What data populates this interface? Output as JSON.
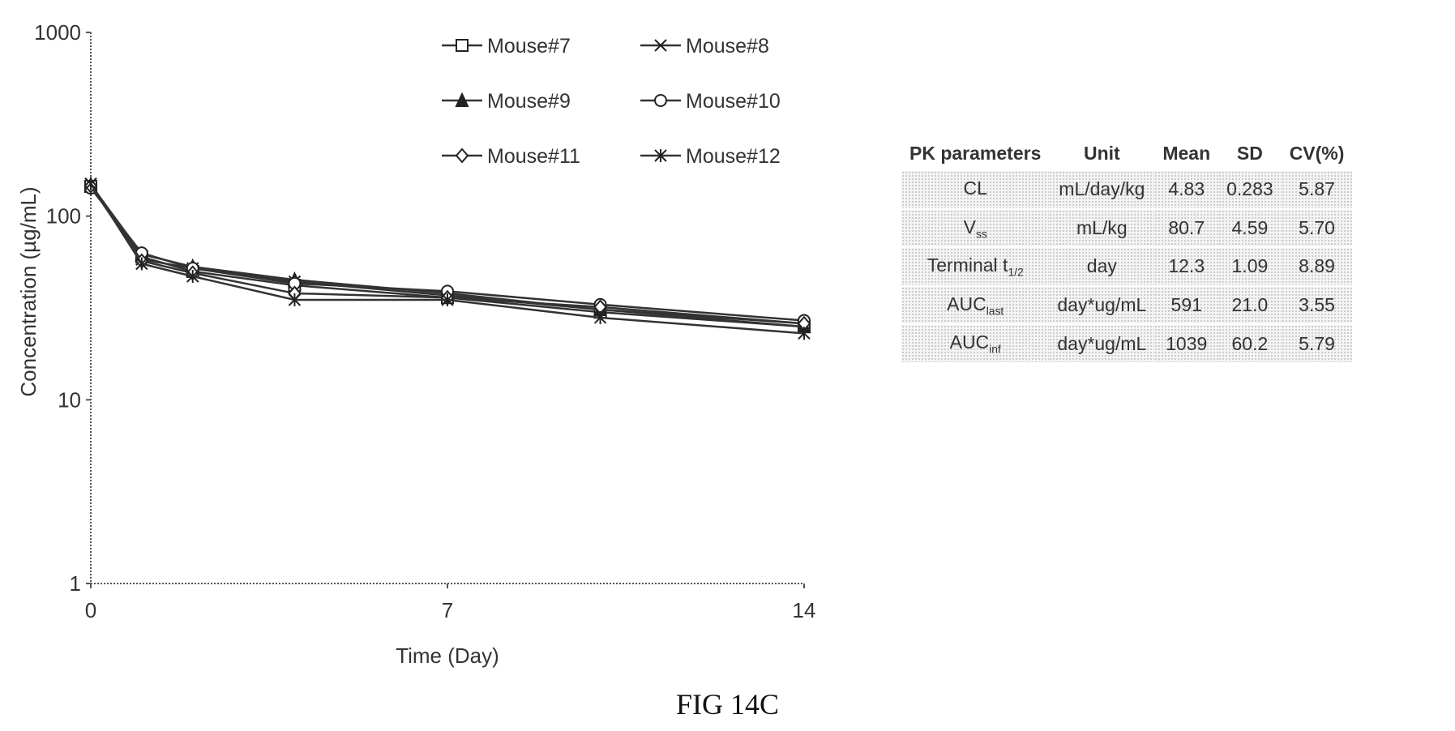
{
  "chart_data": {
    "type": "line",
    "y_scale": "log",
    "ylim": [
      1,
      1000
    ],
    "xlim": [
      0,
      14
    ],
    "xticks": [
      0,
      7,
      14
    ],
    "yticks": [
      1,
      10,
      100,
      1000
    ],
    "xlabel": "Time (Day)",
    "ylabel": "Concentration (µg/mL)",
    "legend_position": "top",
    "x": [
      0,
      1,
      2,
      4,
      7,
      10,
      14
    ],
    "series": [
      {
        "name": "Mouse#7",
        "marker": "square-open",
        "values": [
          145,
          60,
          50,
          42,
          36,
          30,
          25
        ]
      },
      {
        "name": "Mouse#8",
        "marker": "x",
        "values": [
          150,
          58,
          52,
          44,
          37,
          31,
          26
        ]
      },
      {
        "name": "Mouse#9",
        "marker": "triangle",
        "values": [
          148,
          62,
          53,
          45,
          38,
          31,
          25
        ]
      },
      {
        "name": "Mouse#10",
        "marker": "circle-open",
        "values": [
          142,
          63,
          52,
          43,
          39,
          33,
          27
        ]
      },
      {
        "name": "Mouse#11",
        "marker": "diamond-open",
        "values": [
          146,
          57,
          49,
          38,
          36,
          32,
          26
        ]
      },
      {
        "name": "Mouse#12",
        "marker": "asterisk",
        "values": [
          150,
          55,
          47,
          35,
          35,
          28,
          23
        ]
      }
    ]
  },
  "pk_table": {
    "headers": [
      "PK parameters",
      "Unit",
      "Mean",
      "SD",
      "CV(%)"
    ],
    "rows": [
      {
        "param": "CL",
        "param_sub": "",
        "unit": "mL/day/kg",
        "mean": "4.83",
        "sd": "0.283",
        "cv": "5.87"
      },
      {
        "param": "V",
        "param_sub": "ss",
        "unit": "mL/kg",
        "mean": "80.7",
        "sd": "4.59",
        "cv": "5.70"
      },
      {
        "param": "Terminal t",
        "param_sub": "1/2",
        "unit": "day",
        "mean": "12.3",
        "sd": "1.09",
        "cv": "8.89"
      },
      {
        "param": "AUC",
        "param_sub": "last",
        "unit": "day*ug/mL",
        "mean": "591",
        "sd": "21.0",
        "cv": "3.55"
      },
      {
        "param": "AUC",
        "param_sub": "inf",
        "unit": "day*ug/mL",
        "mean": "1039",
        "sd": "60.2",
        "cv": "5.79"
      }
    ]
  },
  "caption": "FIG 14C"
}
